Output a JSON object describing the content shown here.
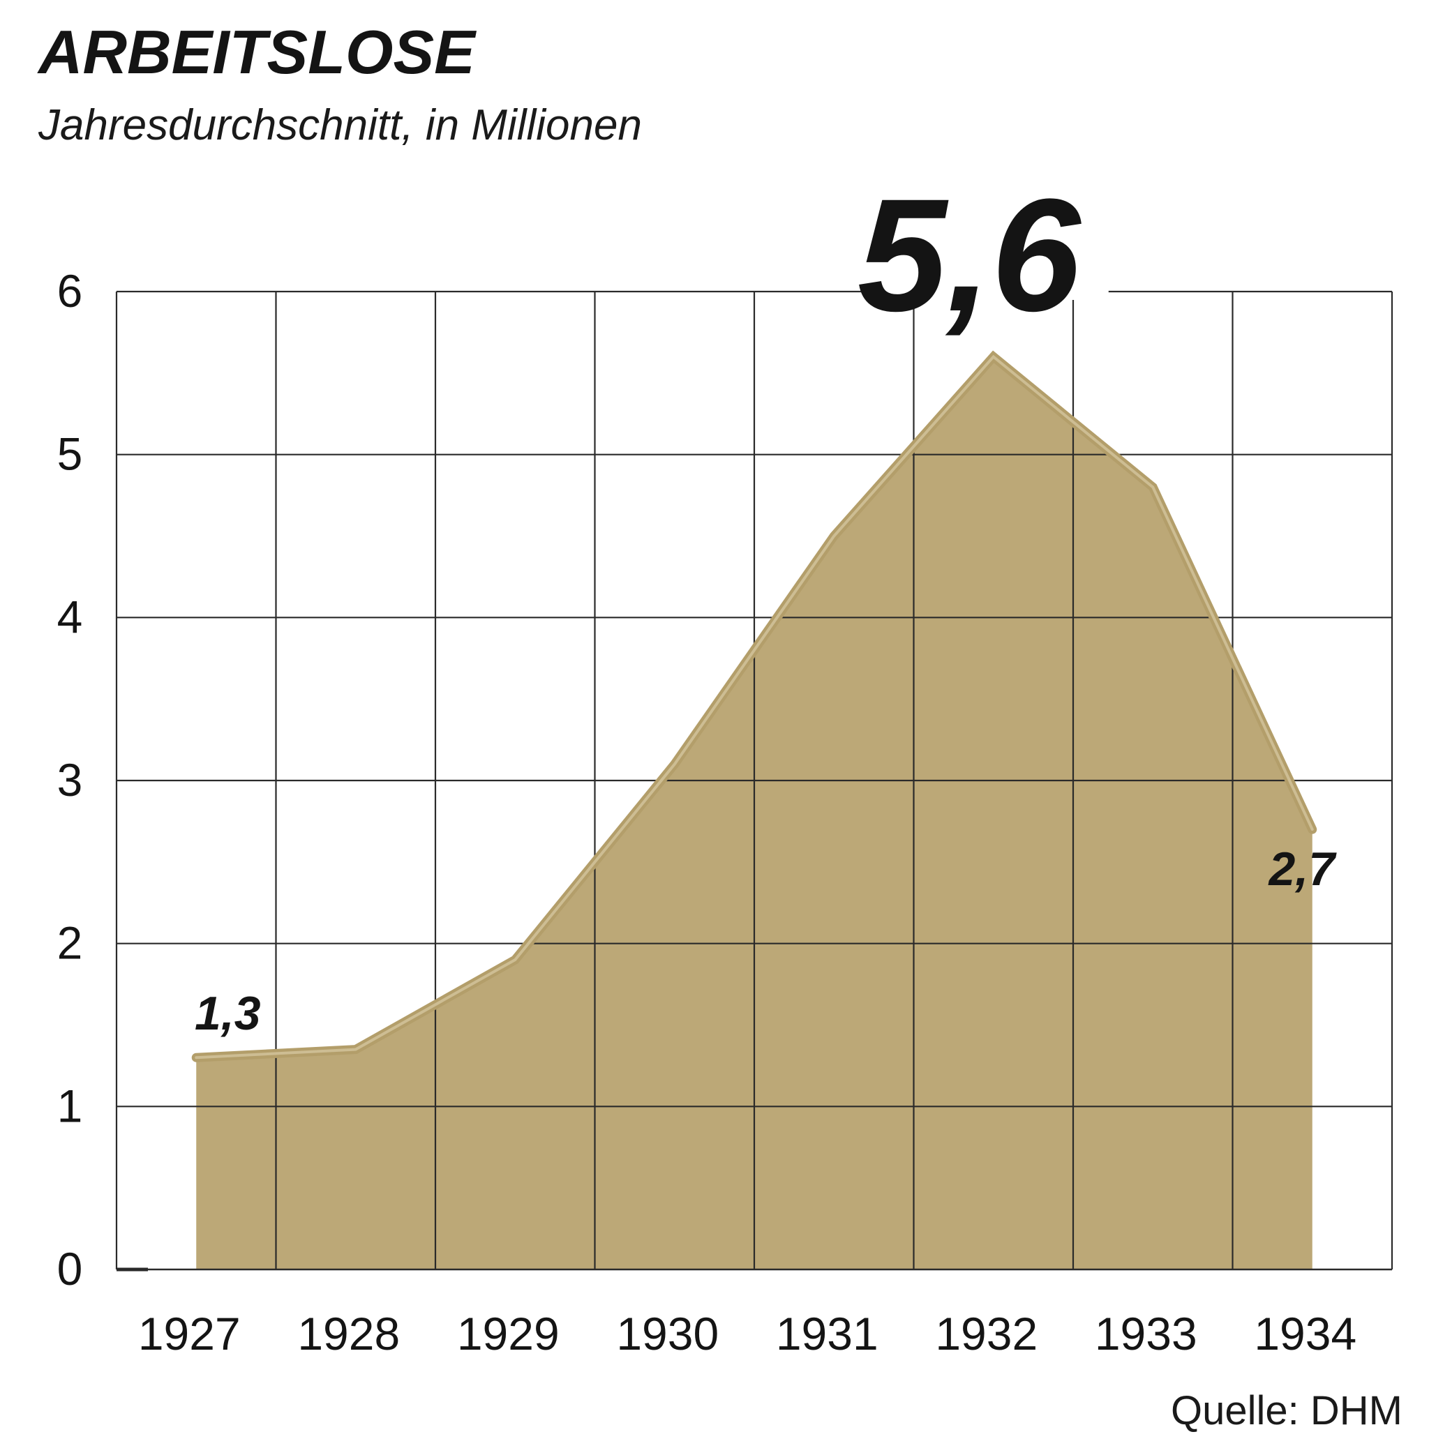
{
  "chart_data": {
    "type": "area",
    "title": "ARBEITSLOSE",
    "subtitle": "Jahresdurchschnitt, in Millionen",
    "categories": [
      "1927",
      "1928",
      "1929",
      "1930",
      "1931",
      "1932",
      "1933",
      "1934"
    ],
    "series": [
      {
        "values": [
          1.3,
          1.35,
          1.9,
          3.1,
          4.5,
          5.6,
          4.8,
          2.7
        ]
      }
    ],
    "ylim": [
      0,
      6
    ],
    "yticks": [
      "0",
      "1",
      "2",
      "3",
      "4",
      "5",
      "6"
    ],
    "grid": true,
    "annotations": [
      {
        "index": 0,
        "text": "1,3",
        "size": "small"
      },
      {
        "index": 5,
        "text": "5,6",
        "size": "large"
      },
      {
        "index": 7,
        "text": "2,7",
        "size": "small"
      }
    ],
    "source": "Quelle: DHM",
    "colors": {
      "fill": "#bca877",
      "line": "#b39e6a",
      "grid": "#2a2a2a",
      "text": "#141414"
    }
  }
}
